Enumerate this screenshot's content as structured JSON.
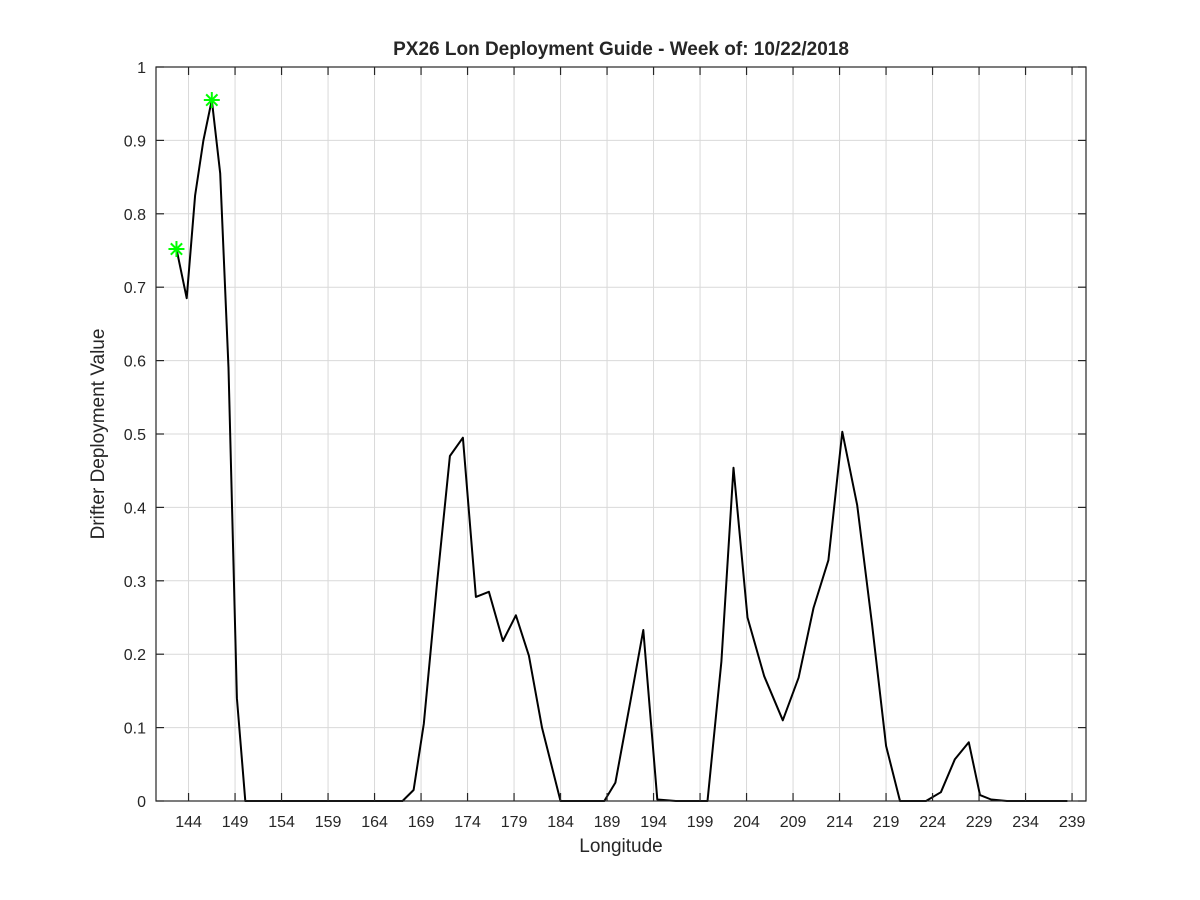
{
  "chart_data": {
    "type": "line",
    "title": "PX26 Lon Deployment Guide - Week of: 10/22/2018",
    "xlabel": "Longitude",
    "ylabel": "Drifter Deployment Value",
    "xlim": [
      140.5,
      240.5
    ],
    "ylim": [
      0,
      1
    ],
    "grid": true,
    "x_ticks": [
      144,
      149,
      154,
      159,
      164,
      169,
      174,
      179,
      184,
      189,
      194,
      199,
      204,
      209,
      214,
      219,
      224,
      229,
      234,
      239
    ],
    "y_ticks": [
      0,
      0.1,
      0.2,
      0.3,
      0.4,
      0.5,
      0.6,
      0.7,
      0.8,
      0.9,
      1
    ],
    "series": [
      {
        "color": "#000000",
        "x": [
          142.7,
          143.8,
          144.7,
          145.6,
          146.5,
          147.4,
          148.3,
          149.2,
          150.1,
          152,
          160,
          165,
          167,
          168.2,
          169.3,
          170.7,
          172.1,
          173.5,
          174.9,
          176.3,
          177.8,
          179.2,
          180.6,
          182,
          184,
          188.7,
          189.9,
          191.5,
          192.9,
          194.4,
          196.4,
          199.8,
          201.3,
          202.6,
          204.1,
          205.9,
          207.9,
          209.6,
          211.2,
          212.8,
          214.3,
          215.9,
          217.5,
          219,
          220.5,
          223.3,
          224.9,
          226.4,
          227.9,
          229.1,
          230.3,
          232,
          236,
          238.5
        ],
        "y": [
          0.752,
          0.685,
          0.825,
          0.9,
          0.955,
          0.855,
          0.59,
          0.14,
          0.0,
          0.0,
          0.0,
          0.0,
          0.0,
          0.015,
          0.105,
          0.295,
          0.47,
          0.495,
          0.278,
          0.285,
          0.218,
          0.253,
          0.198,
          0.1,
          0.0,
          0.0,
          0.025,
          0.135,
          0.233,
          0.002,
          0.0,
          0.0,
          0.19,
          0.454,
          0.25,
          0.17,
          0.11,
          0.168,
          0.263,
          0.328,
          0.503,
          0.403,
          0.24,
          0.075,
          0.0,
          0.0,
          0.012,
          0.057,
          0.08,
          0.008,
          0.002,
          0.0,
          0.0,
          0.0
        ]
      }
    ],
    "markers": {
      "color": "#00ff00",
      "shape": "asterisk",
      "points": [
        {
          "x": 142.7,
          "y": 0.752
        },
        {
          "x": 146.5,
          "y": 0.955
        }
      ]
    }
  }
}
